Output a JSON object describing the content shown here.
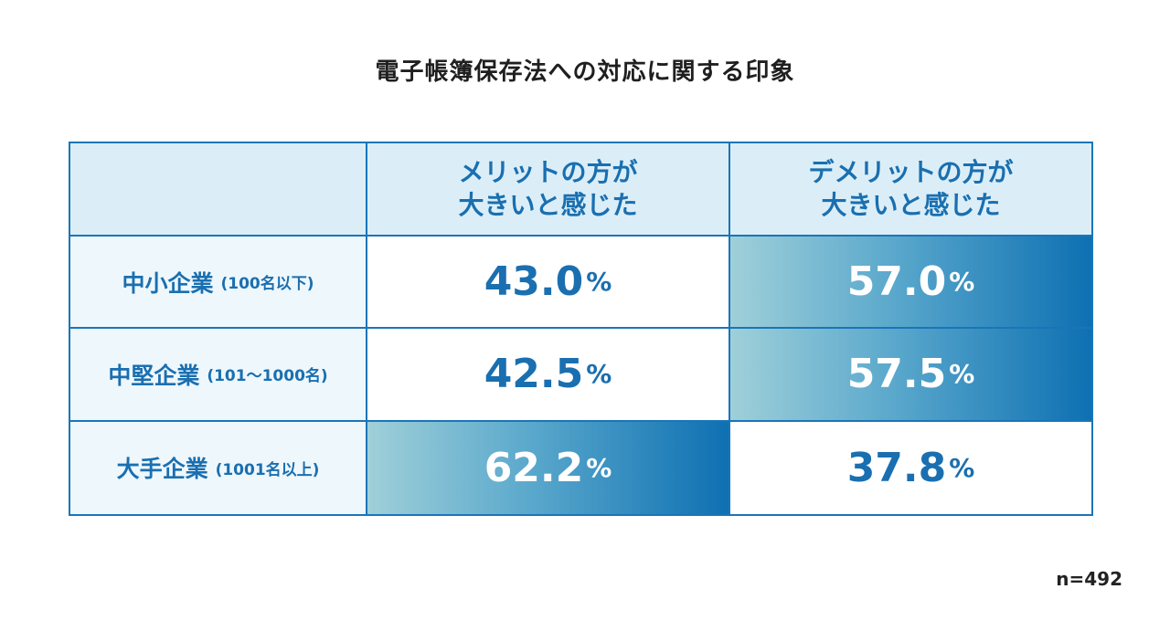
{
  "chart_data": {
    "type": "table",
    "title": "電子帳簿保存法への対応に関する印象",
    "columns": [
      "",
      "メリットの方が\n大きいと感じた",
      "デメリットの方が\n大きいと感じた"
    ],
    "column_lines": [
      [
        "メリットの方が",
        "大きいと感じた"
      ],
      [
        "デメリットの方が",
        "大きいと感じた"
      ]
    ],
    "rows": [
      {
        "label": "中小企業",
        "sub": "(100名以下)",
        "merit": 43.0,
        "demerit": 57.0,
        "merit_text": "43.0",
        "demerit_text": "57.0",
        "highlight": "demerit"
      },
      {
        "label": "中堅企業",
        "sub": "(101〜1000名)",
        "merit": 42.5,
        "demerit": 57.5,
        "merit_text": "42.5",
        "demerit_text": "57.5",
        "highlight": "demerit"
      },
      {
        "label": "大手企業",
        "sub": "(1001名以上)",
        "merit": 62.2,
        "demerit": 37.8,
        "merit_text": "62.2",
        "demerit_text": "37.8",
        "highlight": "merit"
      }
    ],
    "unit": "%",
    "note": "n=492"
  },
  "colors": {
    "accent": "#1a6fb0",
    "border": "#1a75b8",
    "header_bg": "#dbeef8",
    "rowhead_bg": "#eef7fc",
    "gradient_start": "#9fd0d9",
    "gradient_end": "#0e70b2"
  }
}
